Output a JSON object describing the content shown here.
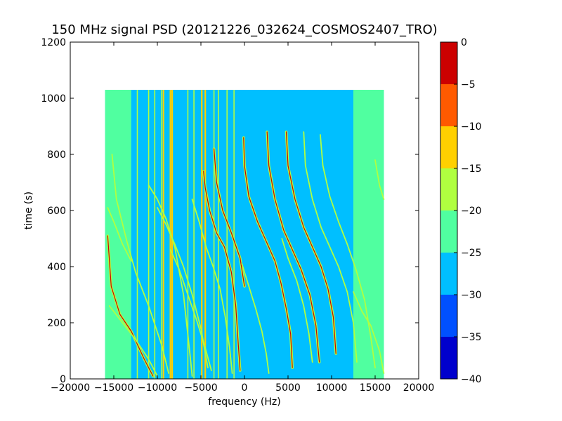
{
  "figure": {
    "title": "150 MHz signal PSD (20121226_032624_COSMOS2407_TRO)"
  },
  "chart_data": {
    "type": "heatmap",
    "title": "150 MHz signal PSD (20121226_032624_COSMOS2407_TRO)",
    "xlabel": "frequency (Hz)",
    "ylabel": "time (s)",
    "xlim": [
      -20000,
      20000
    ],
    "ylim": [
      0,
      1200
    ],
    "xticks": [
      -20000,
      -15000,
      -10000,
      -5000,
      0,
      5000,
      10000,
      15000,
      20000
    ],
    "xtick_labels": [
      "−20000",
      "−15000",
      "−10000",
      "−5000",
      "0",
      "5000",
      "10000",
      "15000",
      "20000"
    ],
    "yticks": [
      0,
      200,
      400,
      600,
      800,
      1000,
      1200
    ],
    "ytick_labels": [
      "0",
      "200",
      "400",
      "600",
      "800",
      "1000",
      "1200"
    ],
    "data_extent": {
      "x": [
        -16000,
        16000
      ],
      "y": [
        0,
        1030
      ]
    },
    "grid": false,
    "colorbar": {
      "levels": [
        -40,
        -35,
        -30,
        -25,
        -20,
        -15,
        -10,
        -5,
        0
      ],
      "tick_labels": [
        "−40",
        "−35",
        "−30",
        "−25",
        "−20",
        "−15",
        "−10",
        "−5",
        "0"
      ],
      "colors": [
        "#0000cd",
        "#0050ff",
        "#00bfff",
        "#50ffa0",
        "#b0ff40",
        "#ffd000",
        "#ff5a00",
        "#cc0000"
      ]
    },
    "background": {
      "edge_color": "#50ffa0",
      "inner_color": "#00bfff",
      "edge_x_ranges": [
        [
          -16000,
          -13000
        ],
        [
          12500,
          16000
        ]
      ]
    },
    "vertical_lines": [
      {
        "x": -12300,
        "level": "mid"
      },
      {
        "x": -11000,
        "level": "mid"
      },
      {
        "x": -10300,
        "level": "mid"
      },
      {
        "x": -9500,
        "level": "mid"
      },
      {
        "x": -9300,
        "level": "high"
      },
      {
        "x": -8500,
        "level": "high"
      },
      {
        "x": -8300,
        "level": "high"
      },
      {
        "x": -6500,
        "level": "mid"
      },
      {
        "x": -5800,
        "level": "mid"
      },
      {
        "x": -4900,
        "level": "high"
      },
      {
        "x": -4500,
        "level": "high"
      },
      {
        "x": -3500,
        "level": "mid"
      },
      {
        "x": -3000,
        "level": "mid"
      },
      {
        "x": -2000,
        "level": "mid"
      },
      {
        "x": -1200,
        "level": "mid"
      }
    ],
    "series": [
      {
        "level": "mid",
        "points": [
          [
            -15700,
            610
          ],
          [
            -15000,
            560
          ],
          [
            -14000,
            480
          ],
          [
            -13000,
            420
          ]
        ]
      },
      {
        "level": "high",
        "points": [
          [
            -15700,
            510
          ],
          [
            -15300,
            330
          ],
          [
            -14300,
            230
          ],
          [
            -13000,
            170
          ],
          [
            -11500,
            70
          ],
          [
            -10500,
            10
          ]
        ]
      },
      {
        "level": "mid",
        "points": [
          [
            -15200,
            800
          ],
          [
            -14700,
            640
          ],
          [
            -13500,
            490
          ],
          [
            -12500,
            380
          ],
          [
            -11000,
            260
          ],
          [
            -9500,
            120
          ],
          [
            -8700,
            20
          ]
        ]
      },
      {
        "level": "mid",
        "points": [
          [
            -15500,
            260
          ],
          [
            -14000,
            200
          ],
          [
            -12500,
            140
          ],
          [
            -11000,
            70
          ],
          [
            -10000,
            10
          ]
        ]
      },
      {
        "level": "mid",
        "points": [
          [
            -11000,
            690
          ],
          [
            -10000,
            640
          ],
          [
            -9000,
            570
          ],
          [
            -8000,
            470
          ],
          [
            -7000,
            300
          ],
          [
            -6300,
            100
          ],
          [
            -6000,
            10
          ]
        ]
      },
      {
        "level": "mid",
        "points": [
          [
            -10000,
            610
          ],
          [
            -9000,
            550
          ],
          [
            -8000,
            480
          ],
          [
            -7000,
            400
          ],
          [
            -6000,
            300
          ],
          [
            -5000,
            180
          ],
          [
            -4200,
            40
          ]
        ]
      },
      {
        "level": "mid",
        "points": [
          [
            -8500,
            460
          ],
          [
            -7500,
            390
          ],
          [
            -6500,
            300
          ],
          [
            -5500,
            210
          ],
          [
            -4500,
            110
          ],
          [
            -3800,
            30
          ]
        ]
      },
      {
        "level": "high",
        "points": [
          [
            -4700,
            740
          ],
          [
            -4500,
            680
          ],
          [
            -4000,
            600
          ],
          [
            -3200,
            520
          ],
          [
            -2300,
            470
          ],
          [
            -1500,
            380
          ],
          [
            -1000,
            260
          ],
          [
            -700,
            120
          ],
          [
            -500,
            30
          ]
        ]
      },
      {
        "level": "high",
        "points": [
          [
            -3500,
            820
          ],
          [
            -3200,
            700
          ],
          [
            -2500,
            600
          ],
          [
            -1500,
            520
          ],
          [
            -500,
            430
          ],
          [
            0,
            330
          ]
        ]
      },
      {
        "level": "high",
        "points": [
          [
            -100,
            860
          ],
          [
            0,
            760
          ],
          [
            500,
            650
          ],
          [
            1500,
            560
          ],
          [
            2500,
            490
          ],
          [
            3500,
            420
          ],
          [
            4200,
            340
          ],
          [
            4800,
            250
          ],
          [
            5300,
            160
          ],
          [
            5500,
            40
          ]
        ]
      },
      {
        "level": "mid",
        "points": [
          [
            -300,
            410
          ],
          [
            400,
            340
          ],
          [
            1300,
            250
          ],
          [
            2000,
            170
          ],
          [
            2500,
            90
          ],
          [
            2800,
            20
          ]
        ]
      },
      {
        "level": "high",
        "points": [
          [
            2600,
            880
          ],
          [
            2800,
            760
          ],
          [
            3500,
            640
          ],
          [
            4500,
            530
          ],
          [
            5500,
            460
          ],
          [
            6500,
            390
          ],
          [
            7500,
            300
          ],
          [
            8200,
            190
          ],
          [
            8600,
            60
          ]
        ]
      },
      {
        "level": "high",
        "points": [
          [
            4800,
            880
          ],
          [
            5000,
            760
          ],
          [
            5800,
            640
          ],
          [
            6800,
            540
          ],
          [
            7800,
            470
          ],
          [
            8800,
            400
          ],
          [
            9600,
            320
          ],
          [
            10200,
            220
          ],
          [
            10500,
            90
          ]
        ]
      },
      {
        "level": "mid",
        "points": [
          [
            6800,
            880
          ],
          [
            7000,
            760
          ],
          [
            7800,
            640
          ],
          [
            8800,
            540
          ],
          [
            9800,
            470
          ],
          [
            10800,
            400
          ],
          [
            11800,
            310
          ],
          [
            12500,
            200
          ],
          [
            12900,
            60
          ]
        ]
      },
      {
        "level": "mid",
        "points": [
          [
            8700,
            870
          ],
          [
            9000,
            760
          ],
          [
            9800,
            650
          ],
          [
            10800,
            560
          ],
          [
            11800,
            480
          ],
          [
            12800,
            390
          ],
          [
            13800,
            280
          ],
          [
            14500,
            150
          ],
          [
            15000,
            40
          ]
        ]
      },
      {
        "level": "mid",
        "points": [
          [
            4300,
            500
          ],
          [
            5000,
            430
          ],
          [
            6000,
            350
          ],
          [
            6800,
            260
          ],
          [
            7400,
            160
          ],
          [
            7800,
            60
          ]
        ]
      },
      {
        "level": "mid",
        "points": [
          [
            12500,
            310
          ],
          [
            13500,
            240
          ],
          [
            14500,
            190
          ],
          [
            15500,
            100
          ],
          [
            16000,
            20
          ]
        ]
      },
      {
        "level": "mid",
        "points": [
          [
            15000,
            780
          ],
          [
            15500,
            690
          ],
          [
            16000,
            640
          ]
        ]
      },
      {
        "level": "mid",
        "points": [
          [
            -6000,
            640
          ],
          [
            -5200,
            560
          ],
          [
            -4400,
            470
          ],
          [
            -3600,
            400
          ],
          [
            -2800,
            320
          ],
          [
            -2200,
            220
          ],
          [
            -1700,
            110
          ],
          [
            -1400,
            20
          ]
        ]
      }
    ]
  }
}
